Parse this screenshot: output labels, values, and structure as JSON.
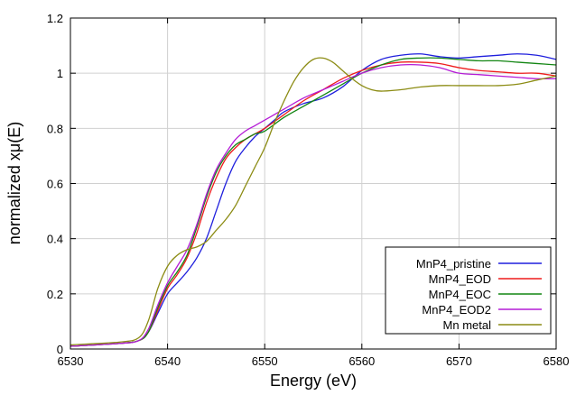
{
  "chart_data": {
    "type": "line",
    "title": "",
    "xlabel": "Energy    (eV)",
    "ylabel": "normalized xμ(E)",
    "xlim": [
      6530,
      6580
    ],
    "ylim": [
      0,
      1.2
    ],
    "x_ticks": [
      6530,
      6540,
      6550,
      6560,
      6570,
      6580
    ],
    "y_ticks": [
      0,
      0.2,
      0.4,
      0.6,
      0.8,
      1,
      1.2
    ],
    "x_tick_labels": [
      "6530",
      "6540",
      "6550",
      "6560",
      "6570",
      "6580"
    ],
    "y_tick_labels": [
      "0",
      "0.2",
      "0.4",
      "0.6",
      "0.8",
      "1",
      "1.2"
    ],
    "grid": true,
    "legend_position": "bottom-right",
    "series": [
      {
        "name": "MnP4_pristine",
        "color": "#1f1fdd",
        "x": [
          6530,
          6535,
          6537,
          6538,
          6539,
          6540,
          6541,
          6542,
          6543,
          6544,
          6545,
          6546,
          6547,
          6548,
          6549,
          6550,
          6551,
          6552,
          6554,
          6556,
          6558,
          6560,
          6562,
          6564,
          6566,
          6568,
          6570,
          6572,
          6574,
          6576,
          6578,
          6580
        ],
        "y": [
          0.01,
          0.02,
          0.03,
          0.06,
          0.13,
          0.2,
          0.24,
          0.28,
          0.33,
          0.4,
          0.5,
          0.6,
          0.68,
          0.73,
          0.77,
          0.8,
          0.83,
          0.86,
          0.89,
          0.91,
          0.95,
          1.01,
          1.05,
          1.065,
          1.07,
          1.06,
          1.055,
          1.06,
          1.065,
          1.07,
          1.065,
          1.05
        ]
      },
      {
        "name": "MnP4_EOD",
        "color": "#ee1c1c",
        "x": [
          6530,
          6535,
          6537,
          6538,
          6539,
          6540,
          6541,
          6542,
          6543,
          6544,
          6545,
          6546,
          6547,
          6548,
          6549,
          6550,
          6552,
          6554,
          6556,
          6558,
          6560,
          6562,
          6564,
          6566,
          6568,
          6570,
          6572,
          6574,
          6576,
          6578,
          6580
        ],
        "y": [
          0.01,
          0.02,
          0.03,
          0.06,
          0.14,
          0.22,
          0.27,
          0.33,
          0.42,
          0.53,
          0.62,
          0.69,
          0.73,
          0.76,
          0.78,
          0.8,
          0.85,
          0.9,
          0.94,
          0.98,
          1.01,
          1.03,
          1.04,
          1.04,
          1.035,
          1.02,
          1.01,
          1.005,
          1.0,
          1.0,
          0.99
        ]
      },
      {
        "name": "MnP4_EOC",
        "color": "#128512",
        "x": [
          6530,
          6535,
          6537,
          6538,
          6539,
          6540,
          6541,
          6542,
          6543,
          6544,
          6545,
          6546,
          6547,
          6548,
          6549,
          6550,
          6552,
          6554,
          6556,
          6558,
          6560,
          6562,
          6564,
          6566,
          6568,
          6570,
          6572,
          6574,
          6576,
          6578,
          6580
        ],
        "y": [
          0.01,
          0.02,
          0.03,
          0.06,
          0.15,
          0.23,
          0.28,
          0.34,
          0.44,
          0.55,
          0.64,
          0.7,
          0.74,
          0.76,
          0.78,
          0.79,
          0.84,
          0.88,
          0.92,
          0.96,
          1.0,
          1.03,
          1.05,
          1.055,
          1.055,
          1.05,
          1.045,
          1.045,
          1.04,
          1.035,
          1.03
        ]
      },
      {
        "name": "MnP4_EOD2",
        "color": "#b41bd6",
        "x": [
          6530,
          6535,
          6537,
          6538,
          6539,
          6540,
          6541,
          6542,
          6543,
          6544,
          6545,
          6546,
          6547,
          6548,
          6549,
          6550,
          6552,
          6554,
          6556,
          6558,
          6560,
          6562,
          6564,
          6566,
          6568,
          6570,
          6572,
          6574,
          6576,
          6578,
          6580
        ],
        "y": [
          0.01,
          0.02,
          0.03,
          0.07,
          0.16,
          0.24,
          0.3,
          0.36,
          0.45,
          0.56,
          0.65,
          0.71,
          0.76,
          0.79,
          0.81,
          0.83,
          0.87,
          0.91,
          0.94,
          0.97,
          1.0,
          1.02,
          1.03,
          1.03,
          1.02,
          1.0,
          0.995,
          0.99,
          0.985,
          0.98,
          0.98
        ]
      },
      {
        "name": "Mn metal",
        "color": "#8c8c14",
        "x": [
          6530,
          6535,
          6537,
          6538,
          6539,
          6540,
          6541,
          6542,
          6543,
          6544,
          6545,
          6546,
          6547,
          6548,
          6549,
          6550,
          6551,
          6552,
          6553,
          6554,
          6555,
          6556,
          6557,
          6558,
          6559,
          6560,
          6561,
          6562,
          6564,
          6566,
          6568,
          6570,
          6572,
          6574,
          6576,
          6578,
          6580
        ],
        "y": [
          0.015,
          0.025,
          0.04,
          0.1,
          0.22,
          0.3,
          0.34,
          0.36,
          0.37,
          0.39,
          0.43,
          0.47,
          0.52,
          0.59,
          0.66,
          0.73,
          0.82,
          0.9,
          0.97,
          1.02,
          1.05,
          1.055,
          1.04,
          1.01,
          0.98,
          0.955,
          0.94,
          0.935,
          0.94,
          0.95,
          0.955,
          0.955,
          0.955,
          0.955,
          0.96,
          0.975,
          0.99
        ]
      }
    ]
  }
}
